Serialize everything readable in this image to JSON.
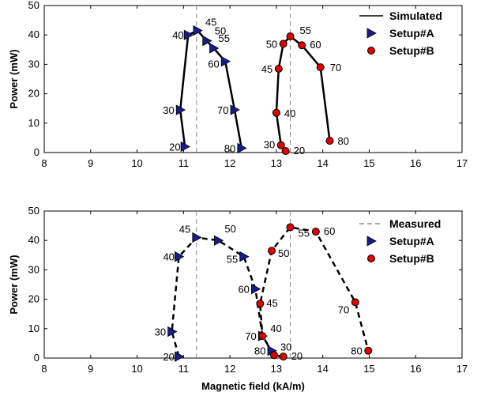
{
  "chart_data": [
    {
      "type": "line",
      "panel": "top",
      "xlabel": "",
      "ylabel": "Power (mW)",
      "xlim": [
        8,
        17
      ],
      "ylim": [
        0,
        50
      ],
      "xticks": [
        8,
        9,
        10,
        11,
        12,
        13,
        14,
        15,
        16,
        17
      ],
      "yticks": [
        0,
        10,
        20,
        30,
        40,
        50
      ],
      "line_style": "solid",
      "vlines": [
        11.28,
        13.3
      ],
      "legend": {
        "placement": "top-right",
        "entries": [
          "Simulated",
          "Setup#A",
          "Setup#B"
        ]
      },
      "series": [
        {
          "name": "Setup#A",
          "marker": "triangle-right",
          "color": "#1a1a8c",
          "points": [
            {
              "x": 11.03,
              "y": 2,
              "label": "20"
            },
            {
              "x": 10.93,
              "y": 14.5,
              "label": "30"
            },
            {
              "x": 11.1,
              "y": 40,
              "label": "40"
            },
            {
              "x": 11.3,
              "y": 41.5,
              "label": "45"
            },
            {
              "x": 11.5,
              "y": 38,
              "label": "50"
            },
            {
              "x": 11.65,
              "y": 35.5,
              "label": "55"
            },
            {
              "x": 11.9,
              "y": 31,
              "label": "60"
            },
            {
              "x": 12.1,
              "y": 14.5,
              "label": "70"
            },
            {
              "x": 12.25,
              "y": 1.5,
              "label": "80"
            }
          ]
        },
        {
          "name": "Setup#B",
          "marker": "circle",
          "color": "#e00000",
          "points": [
            {
              "x": 13.2,
              "y": 0.5,
              "label": "20"
            },
            {
              "x": 13.1,
              "y": 2.5,
              "label": "30"
            },
            {
              "x": 13.0,
              "y": 13.5,
              "label": "40"
            },
            {
              "x": 13.05,
              "y": 28.5,
              "label": "45"
            },
            {
              "x": 13.15,
              "y": 37,
              "label": "50"
            },
            {
              "x": 13.3,
              "y": 39.5,
              "label": "55"
            },
            {
              "x": 13.55,
              "y": 36.5,
              "label": "60"
            },
            {
              "x": 13.95,
              "y": 29,
              "label": "70"
            },
            {
              "x": 14.15,
              "y": 4,
              "label": "80"
            }
          ]
        }
      ]
    },
    {
      "type": "line",
      "panel": "bottom",
      "xlabel": "Magnetic field (kA/m)",
      "ylabel": "Power (mW)",
      "xlim": [
        8,
        17
      ],
      "ylim": [
        0,
        50
      ],
      "xticks": [
        8,
        9,
        10,
        11,
        12,
        13,
        14,
        15,
        16,
        17
      ],
      "yticks": [
        0,
        10,
        20,
        30,
        40,
        50
      ],
      "line_style": "dashed",
      "vlines": [
        11.28,
        13.3
      ],
      "legend": {
        "placement": "top-right",
        "entries": [
          "Measured",
          "Setup#A",
          "Setup#B"
        ]
      },
      "series": [
        {
          "name": "Setup#A",
          "marker": "triangle-right",
          "color": "#1a1a8c",
          "points": [
            {
              "x": 10.9,
              "y": 0.5,
              "label": "20"
            },
            {
              "x": 10.75,
              "y": 9,
              "label": "30"
            },
            {
              "x": 10.9,
              "y": 34.5,
              "label": "40"
            },
            {
              "x": 11.28,
              "y": 41,
              "label": "45"
            },
            {
              "x": 11.75,
              "y": 40,
              "label": "50"
            },
            {
              "x": 12.3,
              "y": 34.5,
              "label": "55"
            },
            {
              "x": 12.55,
              "y": 23.5,
              "label": "60"
            },
            {
              "x": 12.7,
              "y": 7.5,
              "label": "70"
            },
            {
              "x": 12.9,
              "y": 2.5,
              "label": "80"
            }
          ]
        },
        {
          "name": "Setup#B",
          "marker": "circle",
          "color": "#e00000",
          "points": [
            {
              "x": 13.15,
              "y": 0.5,
              "label": "20"
            },
            {
              "x": 12.95,
              "y": 1,
              "label": "30"
            },
            {
              "x": 12.7,
              "y": 7.5,
              "label": "40"
            },
            {
              "x": 12.65,
              "y": 18.5,
              "label": "45"
            },
            {
              "x": 12.9,
              "y": 36.5,
              "label": "50"
            },
            {
              "x": 13.3,
              "y": 44.5,
              "label": "55"
            },
            {
              "x": 13.85,
              "y": 43,
              "label": "60"
            },
            {
              "x": 14.7,
              "y": 19,
              "label": "70"
            },
            {
              "x": 14.98,
              "y": 2.5,
              "label": "80"
            }
          ]
        }
      ]
    }
  ]
}
